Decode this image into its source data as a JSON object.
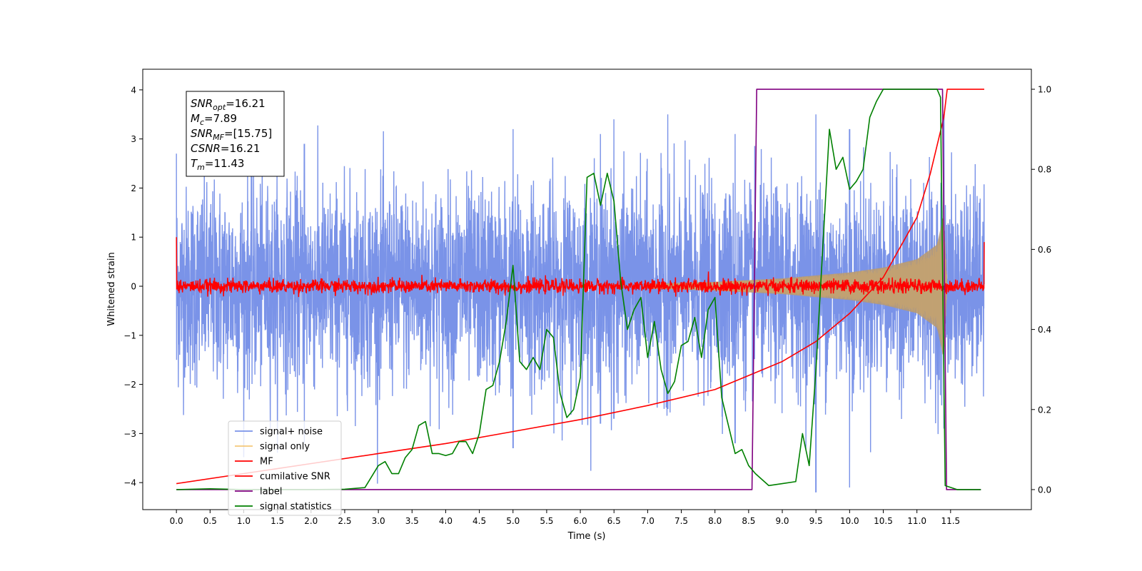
{
  "chart_data": {
    "type": "line",
    "title": "",
    "xlabel": "Time (s)",
    "ylabel_left": "Whitened strain",
    "ylabel_right": "",
    "xlim": [
      -0.5,
      12.7
    ],
    "ylim_left": [
      -4.55,
      4.42
    ],
    "ylim_right": [
      -0.05,
      1.05
    ],
    "x_ticks": [
      0.0,
      0.5,
      1.0,
      1.5,
      2.0,
      2.5,
      3.0,
      3.5,
      4.0,
      4.5,
      5.0,
      5.5,
      6.0,
      6.5,
      7.0,
      7.5,
      8.0,
      8.5,
      9.0,
      9.5,
      10.0,
      10.5,
      11.0,
      11.5
    ],
    "x_tick_labels": [
      "0.0",
      "0.5",
      "1.0",
      "1.5",
      "2.0",
      "2.5",
      "3.0",
      "3.5",
      "4.0",
      "4.5",
      "5.0",
      "5.5",
      "6.0",
      "6.5",
      "7.0",
      "7.5",
      "8.0",
      "8.5",
      "9.0",
      "9.5",
      "10.0",
      "10.5",
      "11.0",
      "11.5"
    ],
    "y_ticks_left": [
      -4,
      -3,
      -2,
      -1,
      0,
      1,
      2,
      3,
      4
    ],
    "y_tick_labels_left": [
      "−4",
      "−3",
      "−2",
      "−1",
      "0",
      "1",
      "2",
      "3",
      "4"
    ],
    "y_ticks_right": [
      0.0,
      0.2,
      0.4,
      0.6,
      0.8,
      1.0
    ],
    "y_tick_labels_right": [
      "0.0",
      "0.2",
      "0.4",
      "0.6",
      "0.8",
      "1.0"
    ],
    "grid": false,
    "legend_position": "lower-left",
    "series": [
      {
        "name": "signal+ noise",
        "axis": "left",
        "color": "#7a93e8",
        "kind": "noise_band",
        "x_range": [
          0.0,
          12.0
        ],
        "amplitude_typical": 1.0,
        "peaks": [
          [
            0.0,
            2.7,
            -1.5
          ],
          [
            1.9,
            2.9,
            -3.2
          ],
          [
            5.0,
            3.2,
            -3.3
          ],
          [
            6.3,
            3.1,
            -2.8
          ],
          [
            6.5,
            3.4,
            -2.7
          ],
          [
            7.3,
            3.5,
            -2.5
          ],
          [
            8.3,
            3.1,
            -3.2
          ],
          [
            9.5,
            3.5,
            -4.2
          ],
          [
            10.0,
            3.2,
            -4.1
          ],
          [
            11.4,
            3.5,
            -2.9
          ]
        ]
      },
      {
        "name": "signal only",
        "axis": "left",
        "color": "#f5c87a",
        "kind": "chirp_envelope",
        "x_range": [
          7.0,
          11.45
        ],
        "envelope": [
          [
            7.0,
            0.05
          ],
          [
            8.0,
            0.09
          ],
          [
            9.0,
            0.16
          ],
          [
            10.0,
            0.28
          ],
          [
            10.5,
            0.38
          ],
          [
            11.0,
            0.55
          ],
          [
            11.3,
            0.85
          ],
          [
            11.4,
            1.5
          ],
          [
            11.45,
            0.0
          ]
        ]
      },
      {
        "name": "MF",
        "axis": "left",
        "color": "#ff0000",
        "kind": "noise_band",
        "x_range": [
          0.0,
          12.0
        ],
        "amplitude_typical": 0.07,
        "edges": [
          [
            0.0,
            1.0
          ],
          [
            12.0,
            0.9
          ]
        ]
      },
      {
        "name": "cumilative SNR",
        "axis": "right",
        "color": "#ff0000",
        "kind": "line",
        "x": [
          0.0,
          1.0,
          2.0,
          3.0,
          4.0,
          5.0,
          6.0,
          7.0,
          8.0,
          8.5,
          9.0,
          9.5,
          10.0,
          10.5,
          11.0,
          11.2,
          11.4,
          11.45,
          12.0
        ],
        "y": [
          0.015,
          0.04,
          0.065,
          0.09,
          0.115,
          0.145,
          0.175,
          0.21,
          0.25,
          0.285,
          0.32,
          0.37,
          0.44,
          0.53,
          0.68,
          0.79,
          0.93,
          1.0,
          1.0
        ]
      },
      {
        "name": "label",
        "axis": "right",
        "color": "#800080",
        "kind": "step",
        "x": [
          0.0,
          8.55,
          8.62,
          11.38,
          11.44,
          11.95
        ],
        "y": [
          0.0,
          0.0,
          1.0,
          1.0,
          0.0,
          0.0
        ]
      },
      {
        "name": "signal statistics",
        "axis": "right",
        "color": "#008000",
        "kind": "line",
        "x": [
          0.0,
          0.5,
          1.0,
          2.0,
          2.5,
          2.8,
          3.0,
          3.1,
          3.2,
          3.3,
          3.4,
          3.5,
          3.6,
          3.7,
          3.8,
          3.9,
          4.0,
          4.1,
          4.2,
          4.3,
          4.4,
          4.5,
          4.6,
          4.7,
          4.8,
          4.9,
          5.0,
          5.1,
          5.2,
          5.3,
          5.4,
          5.5,
          5.6,
          5.7,
          5.8,
          5.9,
          6.0,
          6.1,
          6.2,
          6.3,
          6.4,
          6.5,
          6.6,
          6.7,
          6.8,
          6.9,
          7.0,
          7.1,
          7.2,
          7.3,
          7.4,
          7.5,
          7.6,
          7.7,
          7.8,
          7.9,
          8.0,
          8.1,
          8.2,
          8.3,
          8.4,
          8.5,
          8.6,
          8.8,
          9.0,
          9.2,
          9.3,
          9.4,
          9.5,
          9.6,
          9.7,
          9.8,
          9.9,
          10.0,
          10.1,
          10.2,
          10.3,
          10.4,
          10.5,
          10.7,
          11.0,
          11.3,
          11.35,
          11.42,
          11.6,
          11.95
        ],
        "y": [
          0.0,
          0.002,
          0.0,
          0.0,
          0.001,
          0.005,
          0.06,
          0.07,
          0.04,
          0.04,
          0.08,
          0.1,
          0.16,
          0.17,
          0.09,
          0.09,
          0.085,
          0.09,
          0.12,
          0.12,
          0.09,
          0.14,
          0.25,
          0.26,
          0.32,
          0.42,
          0.56,
          0.32,
          0.3,
          0.33,
          0.3,
          0.4,
          0.38,
          0.24,
          0.18,
          0.2,
          0.28,
          0.78,
          0.79,
          0.71,
          0.79,
          0.72,
          0.52,
          0.4,
          0.45,
          0.48,
          0.33,
          0.42,
          0.3,
          0.24,
          0.27,
          0.36,
          0.37,
          0.43,
          0.33,
          0.45,
          0.48,
          0.23,
          0.16,
          0.09,
          0.1,
          0.06,
          0.04,
          0.01,
          0.015,
          0.02,
          0.14,
          0.06,
          0.3,
          0.6,
          0.9,
          0.8,
          0.83,
          0.75,
          0.77,
          0.8,
          0.93,
          0.97,
          1.0,
          1.0,
          1.0,
          1.0,
          0.98,
          0.01,
          0.0,
          0.0
        ]
      }
    ],
    "annotation_lines": [
      {
        "pre": "SNR",
        "sub": "opt",
        "post": "=16.21"
      },
      {
        "pre": "M",
        "sub": "c",
        "post": "=7.89"
      },
      {
        "pre": "SNR",
        "sub": "MF",
        "post": "=[15.75]"
      },
      {
        "pre": "CSNR",
        "sub": "",
        "post": "=16.21"
      },
      {
        "pre": "T",
        "sub": "m",
        "post": "=11.43"
      }
    ]
  }
}
